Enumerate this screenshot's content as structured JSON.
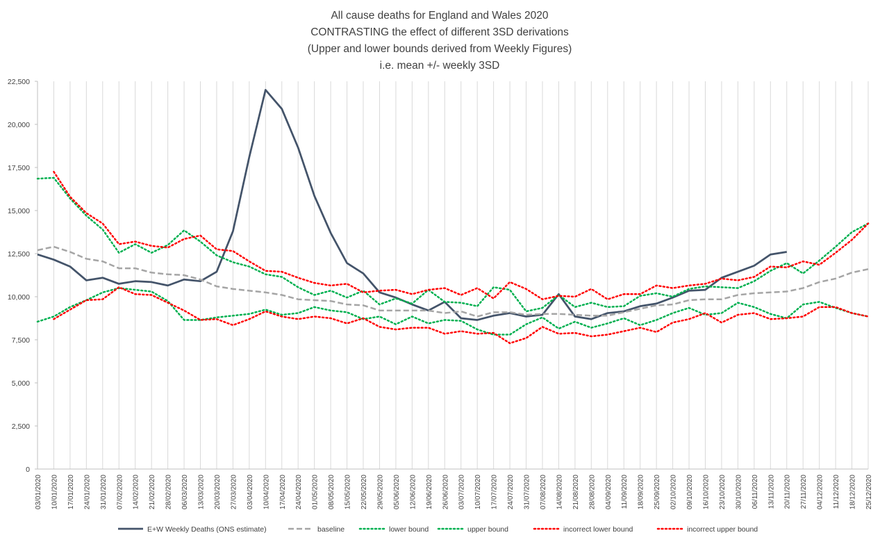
{
  "chart_data": {
    "type": "line",
    "title": [
      "All cause deaths for England and Wales 2020",
      "CONTRASTING the effect of different 3SD derivations",
      "(Upper and lower bounds derived from Weekly Figures)",
      "i.e. mean +/- weekly 3SD"
    ],
    "xlabel": "",
    "ylabel": "",
    "ylim": [
      0,
      22500
    ],
    "y_ticks": [
      0,
      2500,
      5000,
      7500,
      10000,
      12500,
      15000,
      17500,
      20000,
      22500
    ],
    "y_tick_labels": [
      "0",
      "2,500",
      "5,000",
      "7,500",
      "10,000",
      "12,500",
      "15,000",
      "17,500",
      "20,000",
      "22,500"
    ],
    "grid": "vertical gridlines only",
    "legend_position": "bottom",
    "categories": [
      "03/01/2020",
      "10/01/2020",
      "17/01/2020",
      "24/01/2020",
      "31/01/2020",
      "07/02/2020",
      "14/02/2020",
      "21/02/2020",
      "28/02/2020",
      "06/03/2020",
      "13/03/2020",
      "20/03/2020",
      "27/03/2020",
      "03/04/2020",
      "10/04/2020",
      "17/04/2020",
      "24/04/2020",
      "01/05/2020",
      "08/05/2020",
      "15/05/2020",
      "22/05/2020",
      "29/05/2020",
      "05/06/2020",
      "12/06/2020",
      "19/06/2020",
      "26/06/2020",
      "03/07/2020",
      "10/07/2020",
      "17/07/2020",
      "24/07/2020",
      "31/07/2020",
      "07/08/2020",
      "14/08/2020",
      "21/08/2020",
      "28/08/2020",
      "04/09/2020",
      "11/09/2020",
      "18/09/2020",
      "25/09/2020",
      "02/10/2020",
      "09/10/2020",
      "16/10/2020",
      "23/10/2020",
      "30/10/2020",
      "06/11/2020",
      "13/11/2020",
      "20/11/2020",
      "27/11/2020",
      "04/12/2020",
      "11/12/2020",
      "18/12/2020",
      "25/12/2020"
    ],
    "series": [
      {
        "name": "E+W Weekly Deaths (ONS estimate)",
        "color": "#44546a",
        "style": "solid",
        "values": [
          12450,
          12150,
          11750,
          10950,
          11100,
          10750,
          10900,
          10850,
          10650,
          11000,
          10900,
          11450,
          13800,
          18100,
          22000,
          20900,
          18650,
          15850,
          13700,
          11950,
          11350,
          10250,
          9950,
          9550,
          9200,
          9700,
          8750,
          8650,
          8900,
          9050,
          8850,
          8950,
          10150,
          8850,
          8700,
          9050,
          9150,
          9450,
          9600,
          9950,
          10350,
          10400,
          11100,
          11450,
          11800,
          12450,
          12600,
          null,
          null,
          null,
          null,
          null
        ]
      },
      {
        "name": "baseline",
        "color": "#a5a5a5",
        "style": "dashed",
        "values": [
          12700,
          12900,
          12600,
          12200,
          12050,
          11650,
          11650,
          11400,
          11300,
          11250,
          11000,
          10600,
          10450,
          10350,
          10250,
          10100,
          9850,
          9800,
          9750,
          9550,
          9500,
          9200,
          9200,
          9200,
          9200,
          9050,
          9150,
          8850,
          9100,
          9100,
          8950,
          9000,
          9000,
          8950,
          8900,
          8900,
          9100,
          9300,
          9500,
          9550,
          9800,
          9850,
          9850,
          10100,
          10200,
          10250,
          10300,
          10500,
          10850,
          11050,
          11400,
          11600
        ]
      },
      {
        "name": "lower bound",
        "color": "#00b050",
        "style": "dotted",
        "values": [
          8550,
          8850,
          9400,
          9800,
          10250,
          10500,
          10400,
          10300,
          9750,
          8650,
          8650,
          8800,
          8900,
          9000,
          9250,
          8950,
          9050,
          9400,
          9200,
          9100,
          8700,
          8850,
          8400,
          8850,
          8450,
          8650,
          8600,
          8100,
          7800,
          7800,
          8400,
          8800,
          8150,
          8550,
          8200,
          8450,
          8750,
          8350,
          8650,
          9050,
          9350,
          8950,
          9050,
          9650,
          9400,
          9000,
          8750,
          9550,
          9700,
          9350,
          9050,
          8850
        ]
      },
      {
        "name": "upper bound",
        "color": "#00b050",
        "style": "dotted",
        "values": [
          16850,
          16900,
          15700,
          14700,
          13900,
          12550,
          13050,
          12550,
          13000,
          13850,
          13200,
          12400,
          12000,
          11750,
          11300,
          11150,
          10550,
          10100,
          10350,
          9950,
          10350,
          9550,
          9900,
          9600,
          10400,
          9700,
          9650,
          9450,
          10550,
          10400,
          9150,
          9350,
          10100,
          9400,
          9650,
          9400,
          9450,
          10050,
          10200,
          10000,
          10450,
          10600,
          10550,
          10500,
          10900,
          11500,
          11950,
          11350,
          12100,
          12900,
          13750,
          14250
        ]
      },
      {
        "name": "incorrect lower bound",
        "color": "#ff0000",
        "style": "dotted",
        "values": [
          null,
          8700,
          9250,
          9800,
          9850,
          10550,
          10150,
          10100,
          9650,
          9200,
          8650,
          8700,
          8350,
          8700,
          9150,
          8850,
          8700,
          8850,
          8750,
          8450,
          8750,
          8250,
          8100,
          8200,
          8200,
          7850,
          8000,
          7850,
          7900,
          7300,
          7600,
          8250,
          7850,
          7900,
          7700,
          7800,
          8000,
          8200,
          7950,
          8500,
          8700,
          9050,
          8500,
          8950,
          9050,
          8700,
          8750,
          8850,
          9400,
          9400,
          9050,
          8850
        ]
      },
      {
        "name": "incorrect upper bound",
        "color": "#ff0000",
        "style": "dotted",
        "values": [
          null,
          17250,
          15800,
          14850,
          14250,
          13050,
          13200,
          12950,
          12850,
          13350,
          13550,
          12750,
          12650,
          12050,
          11500,
          11450,
          11100,
          10800,
          10650,
          10750,
          10250,
          10350,
          10400,
          10150,
          10400,
          10500,
          10100,
          10500,
          9900,
          10850,
          10450,
          9850,
          10050,
          10000,
          10450,
          9850,
          10150,
          10150,
          10650,
          10500,
          10650,
          10750,
          11050,
          10950,
          11150,
          11750,
          11700,
          12050,
          11850,
          12550,
          13300,
          14250
        ]
      }
    ]
  }
}
